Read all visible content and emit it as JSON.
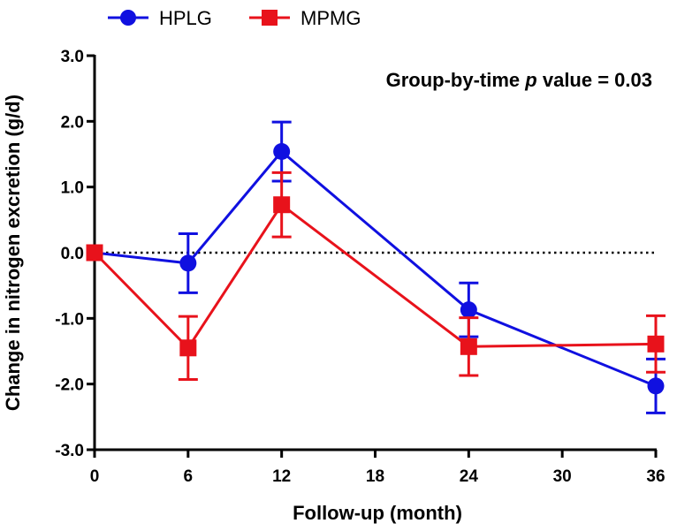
{
  "chart_data": {
    "type": "line",
    "title": "",
    "xlabel": "Follow-up (month)",
    "ylabel": "Change in nitrogen excretion (g/d)",
    "xlim": [
      0,
      36
    ],
    "ylim": [
      -3,
      3
    ],
    "x_ticks": [
      0,
      6,
      12,
      18,
      24,
      30,
      36
    ],
    "x_tick_labels": [
      "0",
      "6",
      "12",
      "18",
      "24",
      "30",
      "36"
    ],
    "y_ticks": [
      3,
      2,
      1,
      0,
      -1,
      -2,
      -3
    ],
    "y_tick_labels": [
      "3.0",
      "2.0",
      "1.0",
      "0.0",
      "-1.0",
      "-2.0",
      "-3.0"
    ],
    "reference_line": {
      "y": 0,
      "style": "dotted"
    },
    "annotation": {
      "prefix": "Group-by-time ",
      "italic": "p",
      "suffix": " value = 0.03"
    },
    "legend_position": "top-left",
    "series": [
      {
        "name": "HPLG",
        "color": "#1010E0",
        "marker": "circle",
        "x": [
          0,
          6,
          12,
          24,
          36
        ],
        "values": [
          0.0,
          -0.16,
          1.54,
          -0.87,
          -2.03
        ],
        "error": [
          0.0,
          0.45,
          0.45,
          0.41,
          0.41
        ]
      },
      {
        "name": "MPMG",
        "color": "#E8121B",
        "marker": "square",
        "x": [
          0,
          6,
          12,
          24,
          36
        ],
        "values": [
          0.0,
          -1.45,
          0.73,
          -1.43,
          -1.39
        ],
        "error": [
          0.0,
          0.48,
          0.49,
          0.44,
          0.43
        ]
      }
    ]
  }
}
